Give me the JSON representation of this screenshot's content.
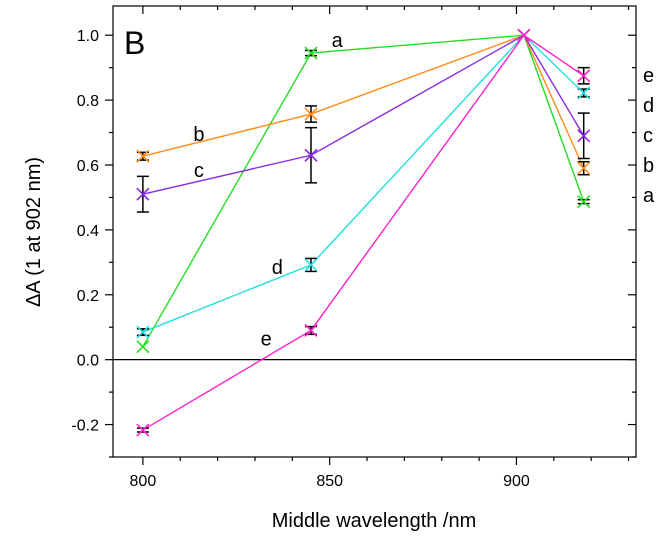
{
  "chart_data": {
    "type": "line",
    "panel_label": "B",
    "xlabel": "Middle wavelength /nm",
    "ylabel": "ΔA (1 at 902 nm)",
    "x_ticks": [
      800,
      850,
      900
    ],
    "y_ticks": [
      -0.2,
      0.0,
      0.2,
      0.4,
      0.6,
      0.8,
      1.0
    ],
    "y_tick_labels": [
      "-0.2",
      "0.0",
      "0.2",
      "0.4",
      "0.6",
      "0.8",
      "1.0"
    ],
    "xlim": [
      792,
      932
    ],
    "ylim": [
      -0.3,
      1.09
    ],
    "zero_line": true,
    "grid": false,
    "x": [
      800,
      845,
      902,
      918
    ],
    "series": [
      {
        "name": "a",
        "color": "#22dd22",
        "values": [
          0.04,
          0.945,
          1.0,
          0.487
        ],
        "errors": [
          0.0,
          0.008,
          0.0,
          0.006
        ],
        "inline_label": {
          "text": "a",
          "x": 852,
          "y": 0.985
        },
        "end_label": "a"
      },
      {
        "name": "b",
        "color": "#ff8c1a",
        "values": [
          0.627,
          0.757,
          1.0,
          0.59
        ],
        "errors": [
          0.012,
          0.025,
          0.0,
          0.02
        ],
        "inline_label": {
          "text": "b",
          "x": 815,
          "y": 0.695
        },
        "end_label": "b"
      },
      {
        "name": "c",
        "color": "#8a2be2",
        "values": [
          0.51,
          0.63,
          1.0,
          0.69
        ],
        "errors": [
          0.055,
          0.085,
          0.0,
          0.07
        ],
        "inline_label": {
          "text": "c",
          "x": 815,
          "y": 0.585
        },
        "end_label": "c"
      },
      {
        "name": "d",
        "color": "#22e0e0",
        "values": [
          0.085,
          0.292,
          1.0,
          0.822
        ],
        "errors": [
          0.01,
          0.02,
          0.0,
          0.012
        ],
        "inline_label": {
          "text": "d",
          "x": 836,
          "y": 0.285
        },
        "end_label": "d"
      },
      {
        "name": "e",
        "color": "#ff22cc",
        "values": [
          -0.217,
          0.09,
          1.0,
          0.875
        ],
        "errors": [
          0.006,
          0.012,
          0.0,
          0.025
        ],
        "inline_label": {
          "text": "e",
          "x": 833,
          "y": 0.065
        },
        "end_label": "e"
      }
    ]
  }
}
